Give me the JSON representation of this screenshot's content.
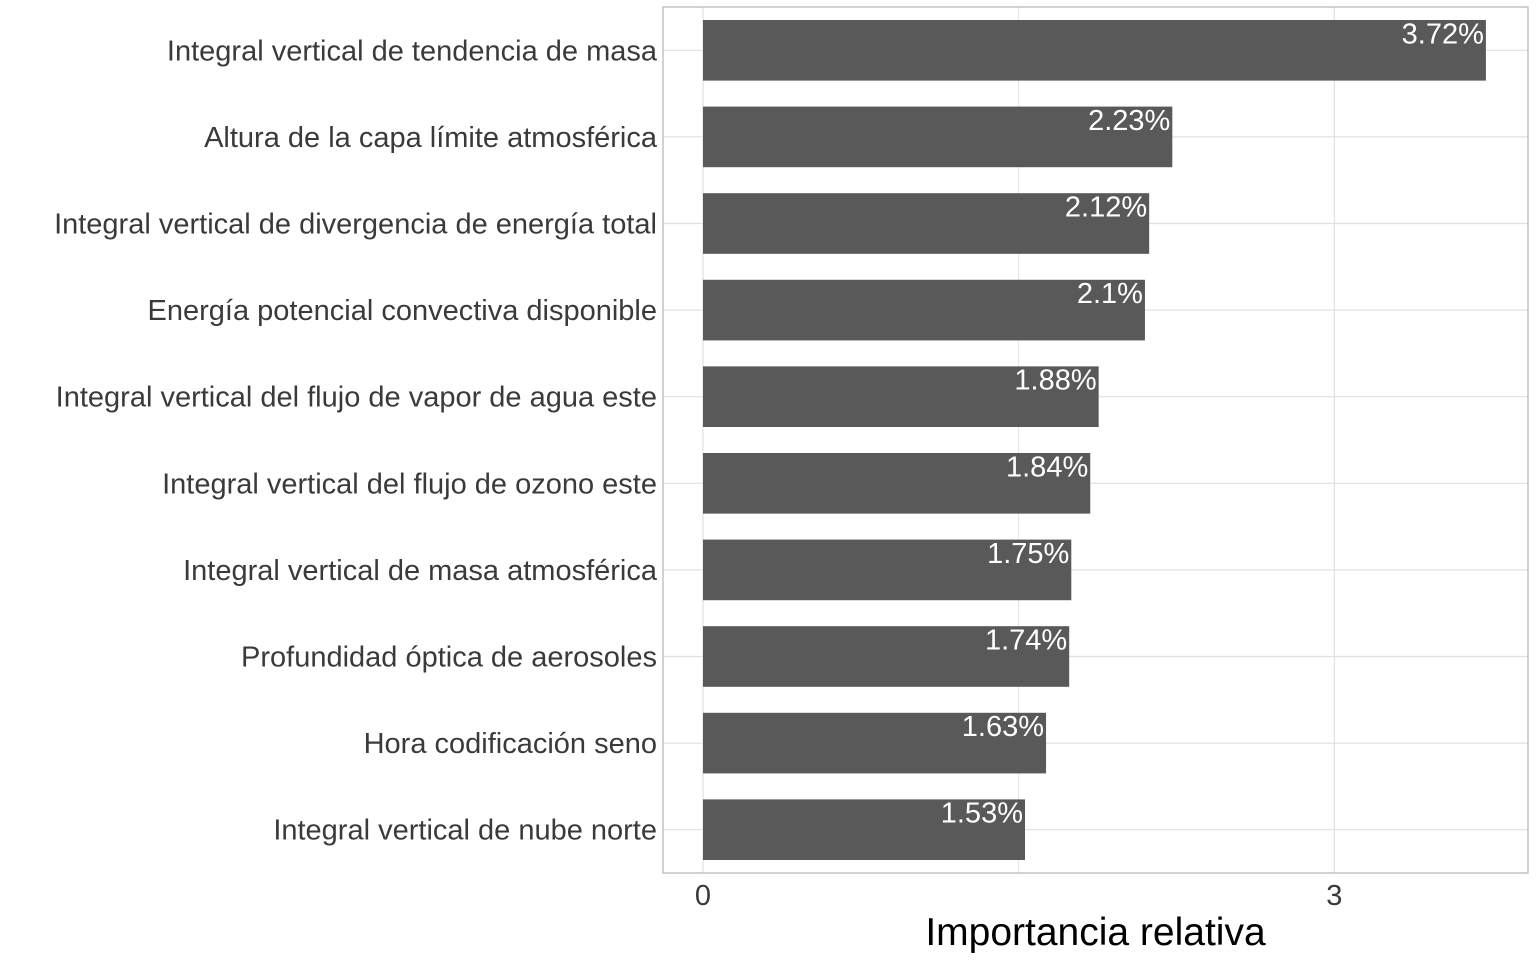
{
  "chart_data": {
    "type": "bar",
    "orientation": "horizontal",
    "title": "",
    "xlabel": "Importancia relativa",
    "ylabel": "",
    "xlim": [
      -0.19,
      3.92
    ],
    "xticks": [
      0,
      3
    ],
    "xtick_labels": [
      "0",
      "3"
    ],
    "grid": true,
    "legend": "none",
    "categories": [
      "Integral vertical de tendencia de masa",
      "Altura de la capa límite atmosférica",
      "Integral vertical de divergencia de energía total",
      "Energía potencial convectiva disponible",
      "Integral vertical del flujo de vapor de agua este",
      "Integral vertical del flujo de ozono este",
      "Integral vertical de masa atmosférica",
      "Profundidad óptica de aerosoles",
      "Hora codificación seno",
      "Integral vertical de nube norte"
    ],
    "values": [
      3.72,
      2.23,
      2.12,
      2.1,
      1.88,
      1.84,
      1.75,
      1.74,
      1.63,
      1.53
    ],
    "data_labels": [
      "3.72%",
      "2.23%",
      "2.12%",
      "2.1%",
      "1.88%",
      "1.84%",
      "1.75%",
      "1.74%",
      "1.63%",
      "1.53%"
    ],
    "colors": {
      "bar": "#595959",
      "grid": "#e0e0e0",
      "panel_border": "#b3b3b3",
      "data_label": "#ffffff",
      "axis_text": "#3a3a3a"
    }
  }
}
